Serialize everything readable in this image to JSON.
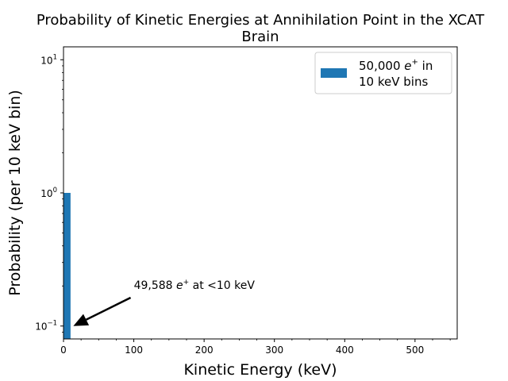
{
  "chart_data": {
    "type": "bar",
    "title_line1": "Probability of Kinetic Energies at Annihilation Point in the XCAT",
    "title_line2": "Brain",
    "xlabel": "Kinetic Energy (keV)",
    "ylabel": "Probability (per 10 keV bin)",
    "x_scale": "linear",
    "y_scale": "log",
    "xlim": [
      0,
      560
    ],
    "ylim": [
      0.08,
      12.5
    ],
    "x_ticks": [
      0,
      100,
      200,
      300,
      400,
      500
    ],
    "x_tick_labels": [
      "0",
      "100",
      "200",
      "300",
      "400",
      "500"
    ],
    "y_ticks": [
      0.1,
      1,
      10
    ],
    "y_tick_labels": [
      {
        "base": "10",
        "exp": "−1"
      },
      {
        "base": "10",
        "exp": "0"
      },
      {
        "base": "10",
        "exp": "1"
      }
    ],
    "bin_width": 10,
    "bars": [
      {
        "x_start": 0,
        "x_end": 10,
        "value": 1.0
      }
    ],
    "bar_color": "#1f77b4",
    "grid": false,
    "legend": {
      "placement": "top-right",
      "line1_prefix": "50,000 ",
      "line1_var": "e",
      "line1_sup": "+",
      "line1_suffix": " in",
      "line2": "10 keV bins"
    },
    "annotation": {
      "prefix": "49,588 ",
      "var": "e",
      "sup": "+",
      "suffix": " at <10 keV",
      "text_at": [
        100,
        0.19
      ],
      "arrow_tip": [
        14,
        0.1
      ]
    }
  }
}
